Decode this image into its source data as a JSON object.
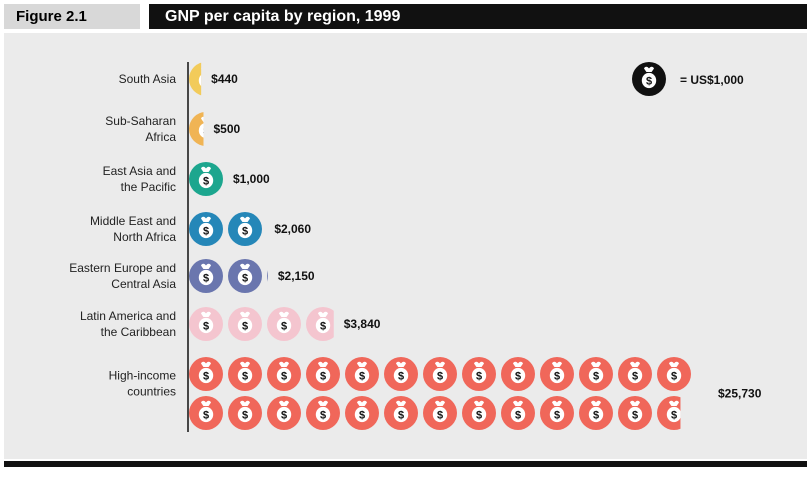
{
  "figure": {
    "label": "Figure 2.1",
    "title": "GNP per capita by region, 1999"
  },
  "legend": {
    "label": "= US$1,000",
    "icon": "money-bag-icon",
    "unit_value": 1000,
    "placement": "top-right"
  },
  "chart_data": {
    "type": "bar",
    "orientation": "horizontal",
    "pictograph": true,
    "icon": "money-bag-icon",
    "unit_value": 1000,
    "categories": [
      [
        "South Asia"
      ],
      [
        "Sub-Saharan",
        "Africa"
      ],
      [
        "East Asia and",
        "the Pacific"
      ],
      [
        "Middle East and",
        "North Africa"
      ],
      [
        "Eastern Europe and",
        "Central Asia"
      ],
      [
        "Latin America and",
        "the Caribbean"
      ],
      [
        "High-income",
        "countries"
      ]
    ],
    "values": [
      440,
      500,
      1000,
      2060,
      2150,
      3840,
      25730
    ],
    "value_labels": [
      "$440",
      "$500",
      "$1,000",
      "$2,060",
      "$2,150",
      "$3,840",
      "$25,730"
    ],
    "colors": [
      "#f2cb5a",
      "#f0b454",
      "#1ca68e",
      "#2587b8",
      "#6a76ae",
      "#f4c5cf",
      "#f0675a"
    ],
    "title": "GNP per capita by region, 1999",
    "xlabel": "",
    "ylabel": ""
  }
}
